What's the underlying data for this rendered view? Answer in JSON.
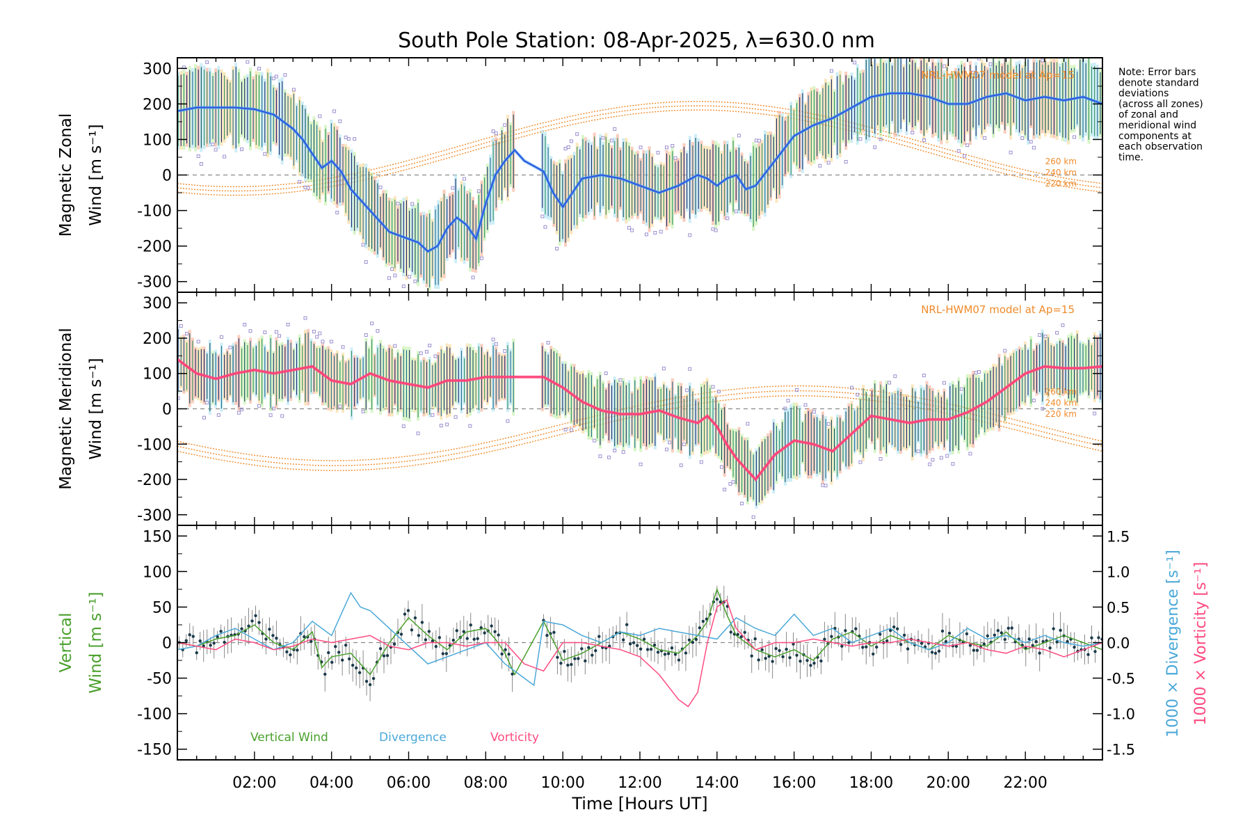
{
  "chart_data": [
    {
      "type": "line",
      "panel": "zonal",
      "title": "South Pole Station: 08-Apr-2025, λ=630.0 nm",
      "ylabel_line1": "Magnetic Zonal",
      "ylabel_line2": "Wind [m s⁻¹]",
      "xlim": [
        0,
        24
      ],
      "ylim": [
        -330,
        330
      ],
      "yticks": [
        300,
        200,
        100,
        0,
        -100,
        -200,
        -300
      ],
      "model_label": "NRL-HWM07 model at Ap=15",
      "model_altitudes": [
        "260 km",
        "240 km",
        "220 km"
      ],
      "note": "Note: Error bars denote standard deviations (across all zones) of zonal and meridional wind components at each observation time.",
      "series": [
        {
          "name": "Mean zonal wind",
          "color": "#2a44e0",
          "x": [
            0.0,
            0.5,
            1.0,
            1.5,
            2.0,
            2.5,
            3.0,
            3.25,
            3.5,
            3.75,
            4.0,
            4.25,
            4.5,
            5.0,
            5.5,
            6.0,
            6.25,
            6.5,
            6.75,
            7.0,
            7.25,
            7.5,
            7.75,
            8.0,
            8.25,
            8.5,
            8.75,
            9.0,
            9.5,
            9.75,
            10.0,
            10.25,
            10.5,
            11.0,
            11.5,
            12.0,
            12.5,
            13.0,
            13.5,
            13.75,
            14.0,
            14.25,
            14.5,
            14.75,
            15.0,
            15.5,
            16.0,
            16.5,
            17.0,
            17.5,
            18.0,
            18.5,
            19.0,
            19.5,
            20.0,
            20.5,
            21.0,
            21.5,
            22.0,
            22.5,
            23.0,
            23.5,
            24.0
          ],
          "y": [
            180,
            190,
            190,
            190,
            185,
            170,
            130,
            100,
            60,
            20,
            40,
            10,
            -40,
            -100,
            -160,
            -180,
            -190,
            -215,
            -200,
            -150,
            -120,
            -140,
            -180,
            -80,
            0,
            40,
            70,
            40,
            10,
            -50,
            -90,
            -50,
            -10,
            0,
            -10,
            -30,
            -50,
            -30,
            0,
            -10,
            -30,
            -10,
            0,
            -40,
            -30,
            40,
            110,
            140,
            160,
            190,
            220,
            230,
            230,
            220,
            200,
            200,
            220,
            230,
            210,
            220,
            210,
            220,
            200
          ]
        }
      ]
    },
    {
      "type": "line",
      "panel": "meridional",
      "ylabel_line1": "Magnetic Meridional",
      "ylabel_line2": "Wind [m s⁻¹]",
      "xlim": [
        0,
        24
      ],
      "ylim": [
        -330,
        330
      ],
      "yticks": [
        300,
        200,
        100,
        0,
        -100,
        -200,
        -300
      ],
      "model_label": "NRL-HWM07 model at Ap=15",
      "model_altitudes": [
        "260 km",
        "240 km",
        "220 km"
      ],
      "series": [
        {
          "name": "Mean meridional wind",
          "color": "#ff3d73",
          "x": [
            0.0,
            0.5,
            1.0,
            1.5,
            2.0,
            2.5,
            3.0,
            3.5,
            4.0,
            4.5,
            5.0,
            5.5,
            6.0,
            6.5,
            7.0,
            7.5,
            8.0,
            8.5,
            9.0,
            9.5,
            10.0,
            10.5,
            11.0,
            11.5,
            12.0,
            12.5,
            13.0,
            13.5,
            13.75,
            14.0,
            14.25,
            14.5,
            14.75,
            15.0,
            15.5,
            16.0,
            16.5,
            17.0,
            17.5,
            18.0,
            18.5,
            19.0,
            19.5,
            20.0,
            20.5,
            21.0,
            21.5,
            22.0,
            22.5,
            23.0,
            23.5,
            24.0
          ],
          "y": [
            140,
            100,
            85,
            100,
            110,
            100,
            110,
            120,
            80,
            70,
            100,
            80,
            70,
            60,
            80,
            80,
            90,
            90,
            90,
            90,
            60,
            20,
            -5,
            -15,
            -15,
            -5,
            -25,
            -40,
            -20,
            -50,
            -100,
            -140,
            -170,
            -200,
            -130,
            -90,
            -100,
            -120,
            -70,
            -20,
            -30,
            -40,
            -30,
            -30,
            -10,
            20,
            60,
            100,
            120,
            115,
            115,
            120
          ]
        }
      ]
    },
    {
      "type": "line",
      "panel": "vertical",
      "ylabel_line1": "Vertical",
      "ylabel_line2": "Wind [m s⁻¹]",
      "right_axis_label_div": "1000 × Divergence [s⁻¹]",
      "right_axis_label_vort": "1000 × Vorticity [s⁻¹]",
      "xlim": [
        0,
        24
      ],
      "ylim": [
        -165,
        165
      ],
      "yticks": [
        150,
        100,
        50,
        0,
        -50,
        -100,
        -150
      ],
      "right_ylim": [
        -1.65,
        1.65
      ],
      "right_yticks": [
        1.5,
        1.0,
        0.5,
        0.0,
        -0.5,
        -1.0,
        -1.5
      ],
      "xticks": [
        "02:00",
        "04:00",
        "06:00",
        "08:00",
        "10:00",
        "12:00",
        "14:00",
        "16:00",
        "18:00",
        "20:00",
        "22:00"
      ],
      "xtick_values": [
        2,
        4,
        6,
        8,
        10,
        12,
        14,
        16,
        18,
        20,
        22
      ],
      "xlabel": "Time [Hours UT]",
      "legend": [
        "Vertical Wind",
        "Divergence",
        "Vorticity"
      ],
      "series": [
        {
          "name": "Vertical Wind",
          "color": "#49a02c",
          "x": [
            0.0,
            0.5,
            1.0,
            1.5,
            2.0,
            2.5,
            3.0,
            3.5,
            3.75,
            4.0,
            4.5,
            5.0,
            5.5,
            6.0,
            6.5,
            7.0,
            7.5,
            8.0,
            8.25,
            8.5,
            8.75,
            9.5,
            10.0,
            10.5,
            11.0,
            11.5,
            12.0,
            12.5,
            13.0,
            13.5,
            13.75,
            14.0,
            14.25,
            14.5,
            15.0,
            15.5,
            16.0,
            16.5,
            17.0,
            17.5,
            18.0,
            18.5,
            19.0,
            19.5,
            20.0,
            20.5,
            21.0,
            21.5,
            22.0,
            22.5,
            23.0,
            23.5,
            24.0
          ],
          "y": [
            0,
            -5,
            5,
            10,
            25,
            0,
            -10,
            15,
            -35,
            -20,
            -15,
            -45,
            0,
            35,
            10,
            -10,
            15,
            20,
            5,
            -15,
            -45,
            30,
            -25,
            -15,
            0,
            15,
            5,
            -10,
            -15,
            10,
            30,
            75,
            40,
            10,
            -10,
            -20,
            -10,
            -25,
            5,
            15,
            -5,
            10,
            0,
            -10,
            10,
            0,
            -5,
            15,
            -10,
            0,
            10,
            0,
            -10
          ]
        },
        {
          "name": "Divergence",
          "color": "#4aa8d8",
          "x": [
            0.0,
            0.5,
            1.0,
            1.5,
            2.0,
            2.5,
            3.0,
            3.5,
            4.0,
            4.25,
            4.5,
            4.75,
            5.0,
            5.5,
            6.0,
            6.5,
            7.0,
            7.5,
            8.0,
            8.5,
            9.0,
            9.25,
            9.5,
            10.0,
            10.5,
            11.0,
            11.5,
            12.0,
            12.5,
            13.0,
            13.5,
            14.0,
            14.5,
            15.0,
            15.5,
            16.0,
            16.5,
            17.0,
            17.5,
            18.0,
            18.5,
            19.0,
            19.5,
            20.0,
            20.5,
            21.0,
            21.5,
            22.0,
            22.5,
            23.0,
            23.5,
            24.0
          ],
          "y": [
            -0.1,
            -0.05,
            0.1,
            0.2,
            0.05,
            -0.1,
            0.0,
            0.3,
            0.1,
            0.4,
            0.7,
            0.5,
            0.45,
            0.2,
            -0.05,
            -0.3,
            -0.2,
            -0.1,
            0.0,
            -0.3,
            -0.5,
            -0.6,
            0.3,
            0.25,
            0.1,
            0.0,
            0.15,
            0.1,
            0.2,
            0.15,
            0.1,
            0.05,
            0.35,
            0.2,
            0.1,
            0.4,
            0.1,
            0.2,
            0.0,
            0.1,
            0.2,
            0.0,
            -0.1,
            0.0,
            0.2,
            0.05,
            0.1,
            0.0,
            0.1,
            0.0,
            -0.05,
            0.0
          ]
        },
        {
          "name": "Vorticity",
          "color": "#ff4a80",
          "x": [
            0.0,
            0.5,
            1.0,
            1.5,
            2.0,
            2.5,
            3.0,
            3.5,
            4.0,
            4.5,
            5.0,
            5.5,
            6.0,
            6.5,
            7.0,
            7.5,
            8.0,
            8.5,
            9.0,
            9.5,
            10.0,
            10.5,
            11.0,
            11.5,
            12.0,
            12.5,
            13.0,
            13.25,
            13.5,
            13.75,
            14.0,
            14.25,
            14.5,
            15.0,
            15.5,
            16.0,
            16.5,
            17.0,
            17.5,
            18.0,
            18.5,
            19.0,
            19.5,
            20.0,
            20.5,
            21.0,
            21.5,
            22.0,
            22.5,
            23.0,
            23.5,
            24.0
          ],
          "y": [
            0.0,
            -0.05,
            -0.1,
            0.05,
            0.0,
            -0.1,
            -0.05,
            0.05,
            0.0,
            0.05,
            0.1,
            -0.05,
            -0.1,
            0.0,
            0.0,
            -0.05,
            0.0,
            0.0,
            -0.3,
            -0.4,
            0.0,
            0.0,
            -0.05,
            -0.1,
            -0.2,
            -0.45,
            -0.8,
            -0.9,
            -0.7,
            0.0,
            0.5,
            0.6,
            0.2,
            -0.1,
            0.0,
            0.0,
            0.05,
            0.0,
            -0.05,
            0.0,
            0.0,
            0.05,
            0.0,
            -0.05,
            0.0,
            -0.1,
            -0.15,
            -0.05,
            -0.1,
            -0.2,
            -0.1,
            0.0
          ]
        }
      ]
    }
  ],
  "ui": {
    "title": "South Pole Station: 08-Apr-2025, λ=630.0 nm",
    "note": "Note: Error bars denote standard deviations (across all zones) of zonal and meridional wind components at each observation time.",
    "xlabel": "Time [Hours UT]",
    "legend_vertical": "Vertical Wind",
    "legend_divergence": "Divergence",
    "legend_vorticity": "Vorticity",
    "model_label": "NRL-HWM07 model at Ap=15"
  }
}
